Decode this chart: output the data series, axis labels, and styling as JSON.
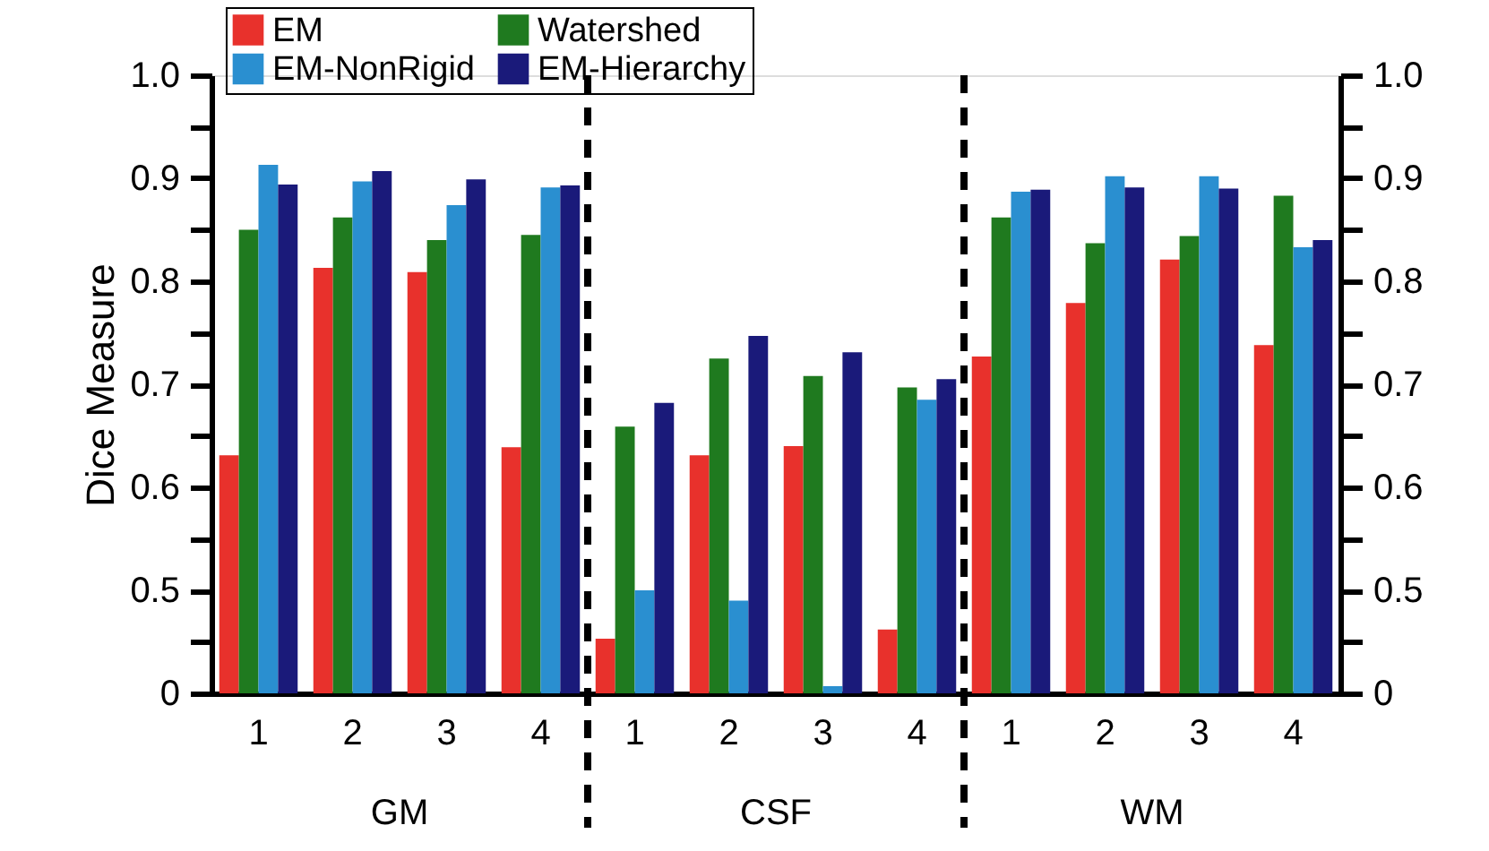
{
  "chart_data": {
    "type": "bar",
    "ylabel": "Dice Measure",
    "categories": [
      "1",
      "2",
      "3",
      "4",
      "1",
      "2",
      "3",
      "4",
      "1",
      "2",
      "3",
      "4"
    ],
    "series": [
      {
        "name": "EM",
        "color": "#e8312c",
        "values": [
          0.631,
          0.813,
          0.809,
          0.639,
          0.453,
          0.631,
          0.64,
          0.462,
          0.727,
          0.779,
          0.821,
          0.738
        ]
      },
      {
        "name": "Watershed",
        "color": "#1f7a1f",
        "values": [
          0.85,
          0.862,
          0.84,
          0.845,
          0.659,
          0.725,
          0.708,
          0.697,
          0.862,
          0.837,
          0.844,
          0.883
        ]
      },
      {
        "name": "EM-NonRigid",
        "color": "#2a8fd0",
        "values": [
          0.913,
          0.897,
          0.874,
          0.891,
          0.5,
          0.49,
          0.407,
          0.685,
          0.887,
          0.902,
          0.902,
          0.833
        ]
      },
      {
        "name": "EM-Hierarchy",
        "color": "#1a1a7a",
        "values": [
          0.894,
          0.907,
          0.899,
          0.893,
          0.682,
          0.747,
          0.731,
          0.705,
          0.889,
          0.891,
          0.89,
          0.84
        ]
      }
    ],
    "ylim": [
      0.4,
      1.0
    ],
    "yticks": [
      {
        "value": 0.4,
        "label": "0"
      },
      {
        "value": 0.45,
        "label": null
      },
      {
        "value": 0.5,
        "label": "0.5"
      },
      {
        "value": 0.55,
        "label": null
      },
      {
        "value": 0.6,
        "label": "0.6"
      },
      {
        "value": 0.65,
        "label": null
      },
      {
        "value": 0.7,
        "label": "0.7"
      },
      {
        "value": 0.75,
        "label": null
      },
      {
        "value": 0.8,
        "label": "0.8"
      },
      {
        "value": 0.85,
        "label": null
      },
      {
        "value": 0.9,
        "label": "0.9"
      },
      {
        "value": 0.95,
        "label": null
      },
      {
        "value": 1.0,
        "label": "1.0"
      }
    ],
    "y2lim": [
      0.4,
      1.0
    ],
    "y2ticks": [
      {
        "value": 0.4,
        "label": "0"
      },
      {
        "value": 0.45,
        "label": null
      },
      {
        "value": 0.5,
        "label": "0.5"
      },
      {
        "value": 0.55,
        "label": null
      },
      {
        "value": 0.6,
        "label": "0.6"
      },
      {
        "value": 0.65,
        "label": null
      },
      {
        "value": 0.7,
        "label": "0.7"
      },
      {
        "value": 0.75,
        "label": null
      },
      {
        "value": 0.8,
        "label": "0.8"
      },
      {
        "value": 0.85,
        "label": null
      },
      {
        "value": 0.9,
        "label": "0.9"
      },
      {
        "value": 0.95,
        "label": null
      },
      {
        "value": 1.0,
        "label": "1.0"
      }
    ],
    "annotations": [
      "GM",
      "CSF",
      "WM"
    ],
    "legend": "top left"
  }
}
